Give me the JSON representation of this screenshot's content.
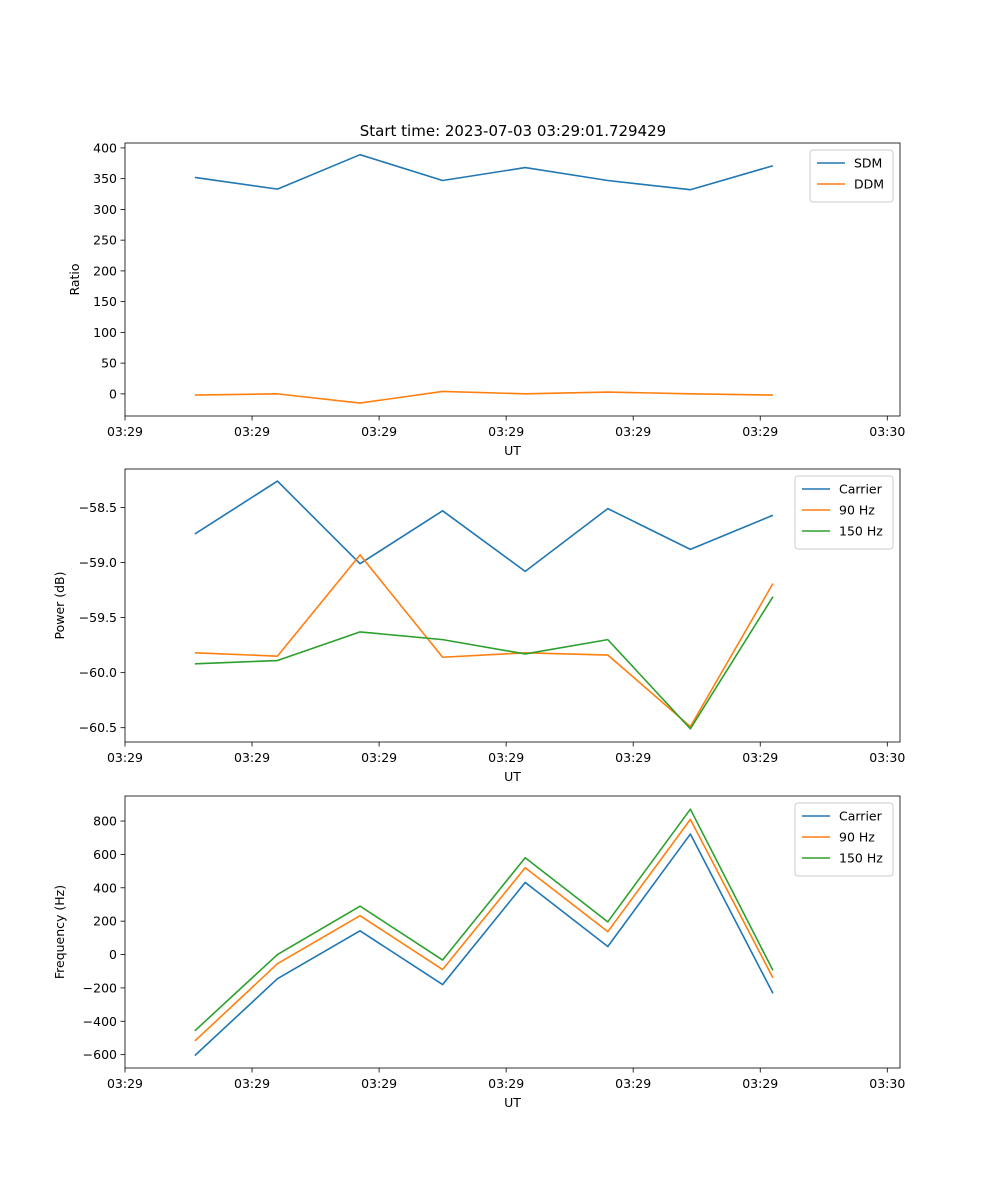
{
  "figure": {
    "title": "Start time: 2023-07-03 03:29:01.729429"
  },
  "chart_data": [
    {
      "type": "line",
      "ylabel": "Ratio",
      "xlabel": "UT",
      "x": [
        0.55,
        1.2,
        1.85,
        2.5,
        3.15,
        3.8,
        4.45,
        5.1
      ],
      "xlim": [
        0.0,
        6.1
      ],
      "ylim": [
        -36,
        408
      ],
      "xticks": [
        0.0,
        1.0,
        2.0,
        3.0,
        4.0,
        5.0,
        6.0
      ],
      "xtick_labels": [
        "03:29",
        "03:29",
        "03:29",
        "03:29",
        "03:29",
        "03:29",
        "03:30"
      ],
      "yticks": [
        0,
        50,
        100,
        150,
        200,
        250,
        300,
        350,
        400
      ],
      "ytick_labels": [
        "0",
        "50",
        "100",
        "150",
        "200",
        "250",
        "300",
        "350",
        "400"
      ],
      "legend_location": "upper-right",
      "series": [
        {
          "name": "SDM",
          "color": "#1f77b4",
          "values": [
            352,
            333,
            389,
            347,
            368,
            347,
            332,
            371
          ]
        },
        {
          "name": "DDM",
          "color": "#ff7f0e",
          "values": [
            -2,
            0,
            -15,
            4,
            0,
            3,
            0,
            -2
          ]
        }
      ]
    },
    {
      "type": "line",
      "ylabel": "Power (dB)",
      "xlabel": "UT",
      "x": [
        0.55,
        1.2,
        1.85,
        2.5,
        3.15,
        3.8,
        4.45,
        5.1
      ],
      "xlim": [
        0.0,
        6.1
      ],
      "ylim": [
        -60.63,
        -58.15
      ],
      "xticks": [
        0.0,
        1.0,
        2.0,
        3.0,
        4.0,
        5.0,
        6.0
      ],
      "xtick_labels": [
        "03:29",
        "03:29",
        "03:29",
        "03:29",
        "03:29",
        "03:29",
        "03:30"
      ],
      "yticks": [
        -58.5,
        -59.0,
        -59.5,
        -60.0,
        -60.5
      ],
      "ytick_labels": [
        "−58.5",
        "−59.0",
        "−59.5",
        "−60.0",
        "−60.5"
      ],
      "legend_location": "upper-right",
      "series": [
        {
          "name": "Carrier",
          "color": "#1f77b4",
          "values": [
            -58.74,
            -58.26,
            -59.01,
            -58.53,
            -59.08,
            -58.51,
            -58.88,
            -58.57
          ]
        },
        {
          "name": "90 Hz",
          "color": "#ff7f0e",
          "values": [
            -59.82,
            -59.85,
            -58.93,
            -59.86,
            -59.82,
            -59.84,
            -60.49,
            -59.19
          ]
        },
        {
          "name": "150 Hz",
          "color": "#2ca02c",
          "values": [
            -59.92,
            -59.89,
            -59.63,
            -59.7,
            -59.83,
            -59.7,
            -60.51,
            -59.31
          ]
        }
      ]
    },
    {
      "type": "line",
      "ylabel": "Frequency (Hz)",
      "xlabel": "UT",
      "x": [
        0.55,
        1.2,
        1.85,
        2.5,
        3.15,
        3.8,
        4.45,
        5.1
      ],
      "xlim": [
        0.0,
        6.1
      ],
      "ylim": [
        -680,
        950
      ],
      "xticks": [
        0.0,
        1.0,
        2.0,
        3.0,
        4.0,
        5.0,
        6.0
      ],
      "xtick_labels": [
        "03:29",
        "03:29",
        "03:29",
        "03:29",
        "03:29",
        "03:29",
        "03:30"
      ],
      "yticks": [
        -600,
        -400,
        -200,
        0,
        200,
        400,
        600,
        800
      ],
      "ytick_labels": [
        "−600",
        "−400",
        "−200",
        "0",
        "200",
        "400",
        "600",
        "800"
      ],
      "legend_location": "upper-right",
      "series": [
        {
          "name": "Carrier",
          "color": "#1f77b4",
          "values": [
            -605,
            -145,
            142,
            -180,
            432,
            48,
            722,
            -233
          ]
        },
        {
          "name": "90 Hz",
          "color": "#ff7f0e",
          "values": [
            -518,
            -55,
            233,
            -90,
            520,
            137,
            810,
            -140
          ]
        },
        {
          "name": "150 Hz",
          "color": "#2ca02c",
          "values": [
            -457,
            0,
            290,
            -33,
            580,
            196,
            871,
            -95
          ]
        }
      ]
    }
  ]
}
